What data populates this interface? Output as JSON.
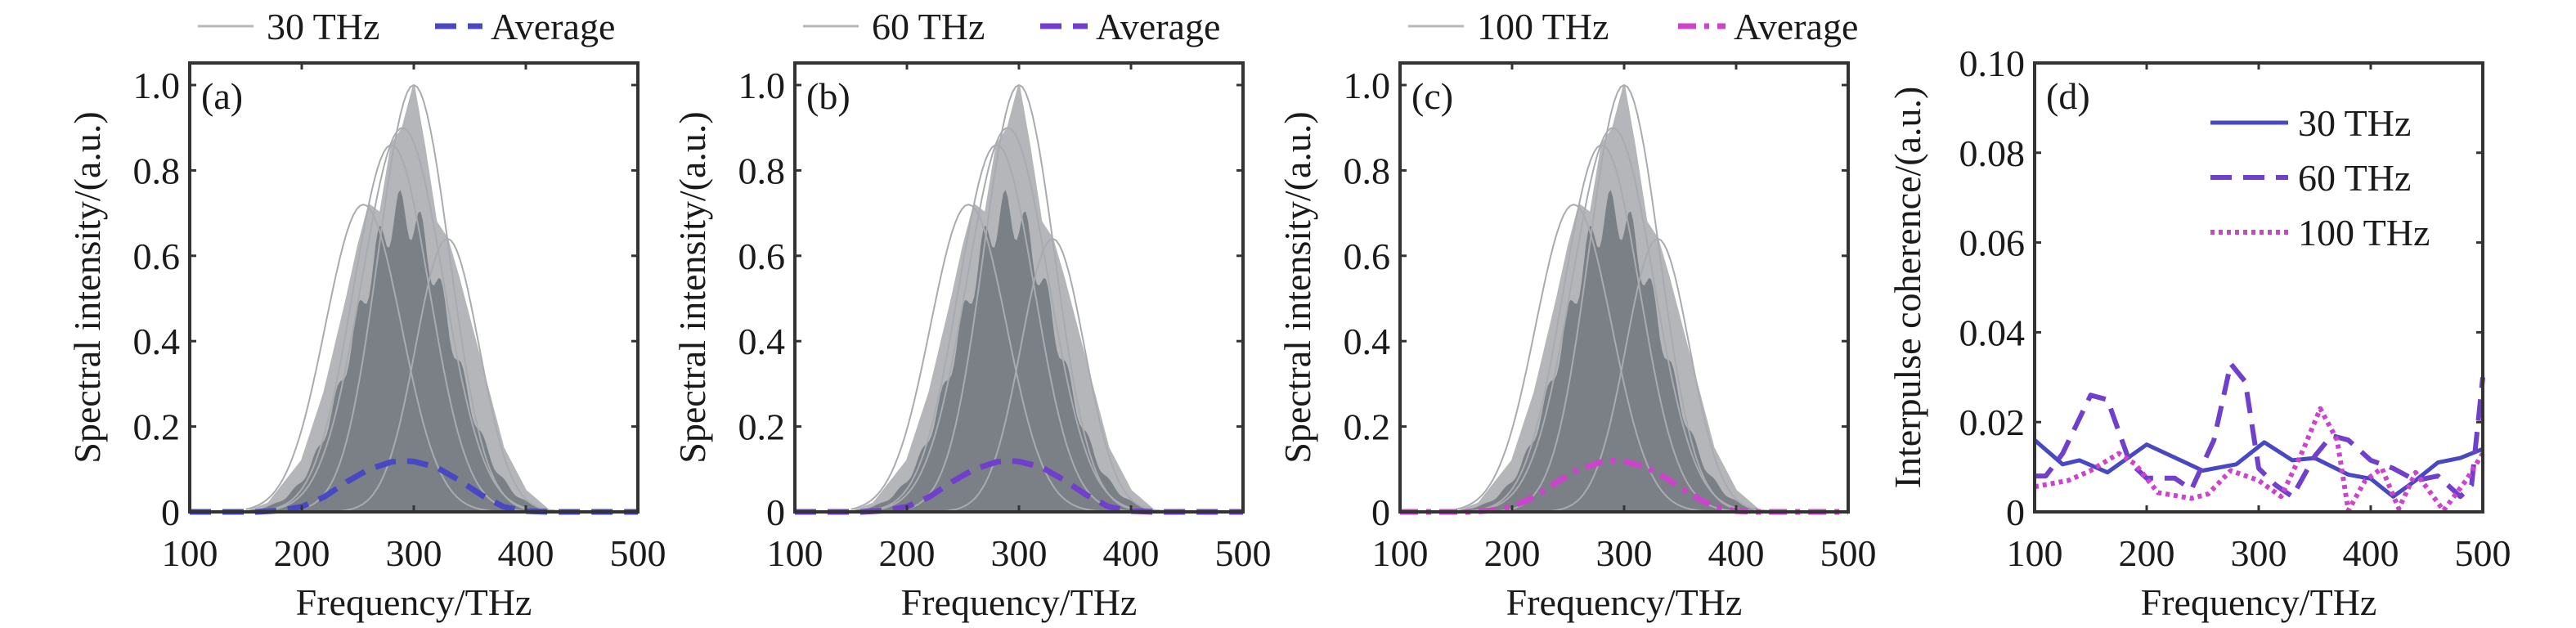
{
  "colors": {
    "gray_traces": "#7b7f86",
    "gray_light": "#b4b6ba",
    "blue": "#4848c4",
    "purple": "#7040cc",
    "magenta": "#cc44cc",
    "axis": "#333333"
  },
  "chart_data": [
    {
      "type": "line",
      "panel_label": "(a)",
      "xlabel": "Frequency/THz",
      "ylabel": "Spectral intensity/(a.u.)",
      "xlim": [
        100,
        500
      ],
      "ylim": [
        0,
        1.05
      ],
      "xticks": [
        "100",
        "200",
        "300",
        "400",
        "500"
      ],
      "yticks": [
        "0",
        "0.2",
        "0.4",
        "0.6",
        "0.8",
        "1.0"
      ],
      "legend": [
        {
          "label": "30 THz",
          "style": "solid-gray"
        },
        {
          "label": "Average",
          "style": "dashed",
          "color": "#4848c4"
        }
      ],
      "legend_placement": "top-outside",
      "x": [
        100,
        160,
        180,
        200,
        220,
        240,
        260,
        280,
        290,
        300,
        320,
        340,
        360,
        380,
        400,
        420,
        500
      ],
      "average": [
        0,
        0,
        0.003,
        0.012,
        0.035,
        0.07,
        0.1,
        0.117,
        0.12,
        0.118,
        0.105,
        0.075,
        0.04,
        0.012,
        0.002,
        0,
        0
      ],
      "envelope_x": [
        100,
        150,
        170,
        200,
        220,
        240,
        250,
        260,
        270,
        280,
        290,
        300,
        310,
        320,
        330,
        340,
        360,
        380,
        400,
        420,
        440,
        500
      ],
      "envelope_max": [
        0,
        0,
        0.02,
        0.12,
        0.28,
        0.5,
        0.62,
        0.72,
        0.7,
        0.86,
        0.9,
        1.0,
        0.85,
        0.68,
        0.64,
        0.55,
        0.35,
        0.15,
        0.05,
        0.005,
        0,
        0
      ]
    },
    {
      "type": "line",
      "panel_label": "(b)",
      "xlabel": "Frequency/THz",
      "ylabel": "Spectral intensity/(a.u.)",
      "xlim": [
        100,
        500
      ],
      "ylim": [
        0,
        1.05
      ],
      "xticks": [
        "100",
        "200",
        "300",
        "400",
        "500"
      ],
      "yticks": [
        "0",
        "0.2",
        "0.4",
        "0.6",
        "0.8",
        "1.0"
      ],
      "legend": [
        {
          "label": "60 THz",
          "style": "solid-gray"
        },
        {
          "label": "Average",
          "style": "dashed",
          "color": "#7040cc"
        }
      ],
      "legend_placement": "top-outside",
      "x": [
        100,
        160,
        180,
        200,
        220,
        240,
        260,
        280,
        290,
        300,
        320,
        340,
        360,
        380,
        400,
        420,
        500
      ],
      "average": [
        0,
        0,
        0.003,
        0.012,
        0.035,
        0.07,
        0.1,
        0.117,
        0.12,
        0.118,
        0.105,
        0.075,
        0.04,
        0.012,
        0.002,
        0,
        0
      ],
      "envelope_x": [
        100,
        150,
        170,
        200,
        220,
        240,
        250,
        260,
        270,
        280,
        290,
        300,
        310,
        320,
        330,
        340,
        360,
        380,
        400,
        420,
        440,
        500
      ],
      "envelope_max": [
        0,
        0,
        0.02,
        0.12,
        0.28,
        0.5,
        0.62,
        0.72,
        0.7,
        0.86,
        0.9,
        1.0,
        0.85,
        0.68,
        0.64,
        0.55,
        0.35,
        0.15,
        0.05,
        0.005,
        0,
        0
      ]
    },
    {
      "type": "line",
      "panel_label": "(c)",
      "xlabel": "Frequency/THz",
      "ylabel": "Spectral intensity/(a.u.)",
      "xlim": [
        100,
        500
      ],
      "ylim": [
        0,
        1.05
      ],
      "xticks": [
        "100",
        "200",
        "300",
        "400",
        "500"
      ],
      "yticks": [
        "0",
        "0.2",
        "0.4",
        "0.6",
        "0.8",
        "1.0"
      ],
      "legend": [
        {
          "label": "100 THz",
          "style": "solid-gray"
        },
        {
          "label": "Average",
          "style": "dashdot",
          "color": "#cc44cc"
        }
      ],
      "legend_placement": "top-outside",
      "x": [
        100,
        160,
        180,
        200,
        220,
        240,
        260,
        280,
        290,
        300,
        320,
        340,
        360,
        380,
        400,
        420,
        500
      ],
      "average": [
        0,
        0,
        0.003,
        0.012,
        0.035,
        0.07,
        0.1,
        0.117,
        0.12,
        0.118,
        0.105,
        0.075,
        0.04,
        0.012,
        0.002,
        0,
        0
      ],
      "envelope_x": [
        100,
        150,
        170,
        200,
        220,
        240,
        250,
        260,
        270,
        280,
        290,
        300,
        310,
        320,
        330,
        340,
        360,
        380,
        400,
        420,
        440,
        500
      ],
      "envelope_max": [
        0,
        0,
        0.02,
        0.12,
        0.28,
        0.5,
        0.62,
        0.72,
        0.7,
        0.86,
        0.9,
        1.0,
        0.85,
        0.68,
        0.64,
        0.55,
        0.35,
        0.15,
        0.05,
        0.005,
        0,
        0
      ]
    },
    {
      "type": "line",
      "panel_label": "(d)",
      "xlabel": "Frequency/THz",
      "ylabel": "Interpulse coherence/(a.u.)",
      "xlim": [
        100,
        500
      ],
      "ylim": [
        0,
        0.1
      ],
      "xticks": [
        "100",
        "200",
        "300",
        "400",
        "500"
      ],
      "yticks": [
        "0",
        "0.02",
        "0.04",
        "0.06",
        "0.08",
        "0.10"
      ],
      "legend_placement": "top-right",
      "series": [
        {
          "name": "30 THz",
          "style": "solid",
          "color": "#4848c4",
          "x": [
            100,
            125,
            140,
            165,
            200,
            250,
            280,
            305,
            330,
            350,
            380,
            400,
            420,
            440,
            460,
            480,
            500
          ],
          "y": [
            0.016,
            0.0106,
            0.0115,
            0.0088,
            0.015,
            0.0092,
            0.0106,
            0.0155,
            0.0115,
            0.012,
            0.0083,
            0.0074,
            0.0034,
            0.007,
            0.011,
            0.012,
            0.014
          ]
        },
        {
          "name": "60 THz",
          "style": "dashed",
          "color": "#7040cc",
          "x": [
            100,
            110,
            125,
            150,
            165,
            185,
            200,
            225,
            240,
            260,
            275,
            288,
            300,
            315,
            330,
            350,
            365,
            380,
            400,
            420,
            440,
            460,
            480,
            490,
            500
          ],
          "y": [
            0.008,
            0.008,
            0.013,
            0.026,
            0.025,
            0.011,
            0.0075,
            0.0075,
            0.005,
            0.016,
            0.033,
            0.029,
            0.0097,
            0.006,
            0.0034,
            0.0124,
            0.017,
            0.016,
            0.0115,
            0.0097,
            0.007,
            0.008,
            0.0034,
            0.006,
            0.03
          ]
        },
        {
          "name": "100 THz",
          "style": "dotted",
          "color": "#cc44cc",
          "x": [
            100,
            130,
            150,
            175,
            190,
            210,
            240,
            255,
            275,
            300,
            320,
            340,
            355,
            370,
            380,
            395,
            410,
            425,
            440,
            465,
            485,
            500
          ],
          "y": [
            0.0056,
            0.007,
            0.0092,
            0.013,
            0.0106,
            0.0043,
            0.003,
            0.004,
            0.0092,
            0.007,
            0.0034,
            0.014,
            0.023,
            0.016,
            0.0003,
            0.007,
            0.0097,
            0.0007,
            0.0088,
            0.0003,
            0.007,
            0.013
          ]
        }
      ]
    }
  ]
}
